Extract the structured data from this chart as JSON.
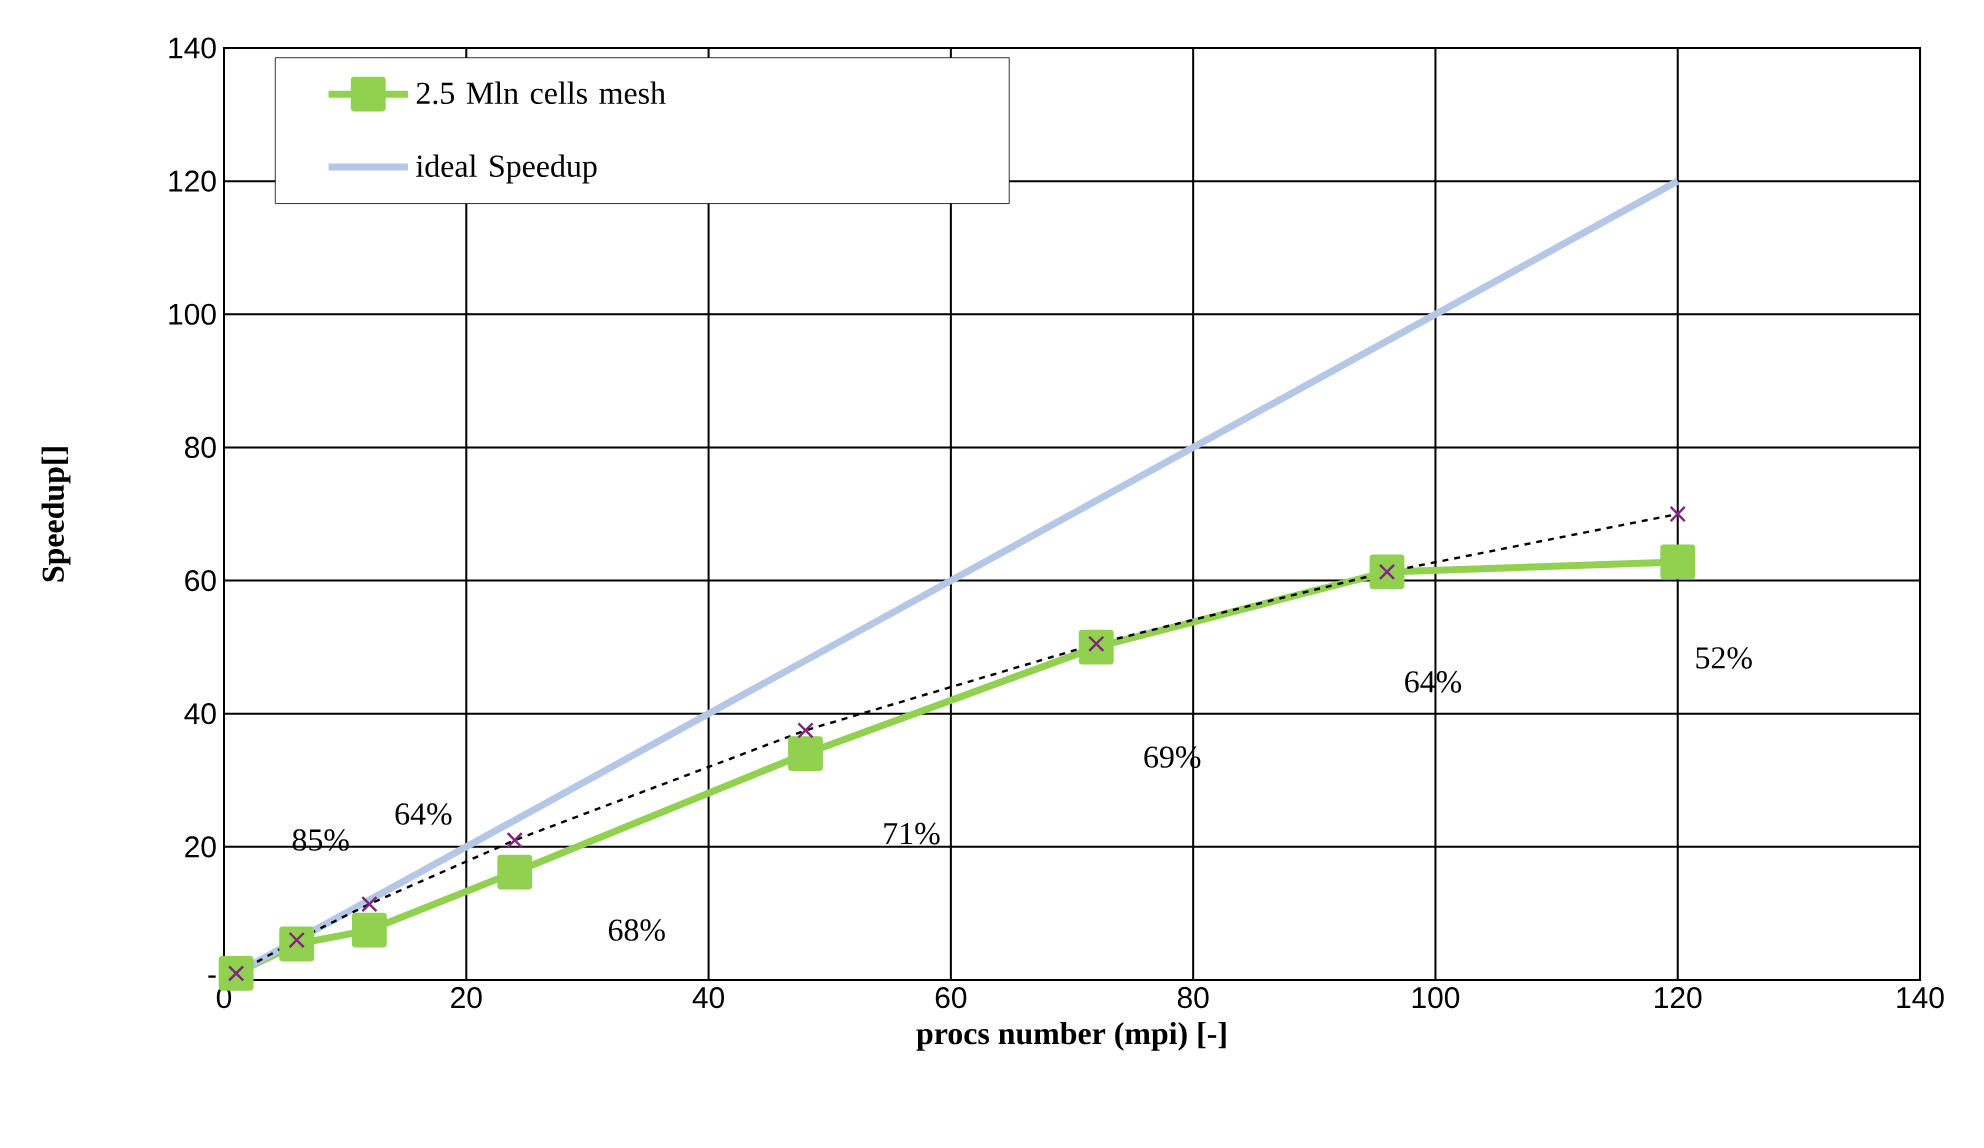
{
  "chart_data": {
    "type": "line",
    "xlabel": "procs number (mpi) [-]",
    "ylabel": "Speedup[]",
    "xlim": [
      0,
      140
    ],
    "xticks": [
      0,
      20,
      40,
      60,
      80,
      100,
      120,
      140
    ],
    "ylim": [
      0,
      140
    ],
    "yticks": [
      {
        "value": 0,
        "label": "-"
      },
      20,
      40,
      60,
      80,
      100,
      120,
      140
    ],
    "grid": true,
    "legend": "top left",
    "series": [
      {
        "name": "2.5 Mln cells mesh",
        "color": "#92d050",
        "marker": "square",
        "line_style": "solid",
        "x": [
          1,
          6,
          12,
          24,
          48,
          72,
          96,
          120
        ],
        "values": [
          1,
          5.4,
          7.5,
          16.2,
          34,
          50,
          61.3,
          62.8
        ]
      },
      {
        "name": "ideal Speedup",
        "color": "#b4c7e7",
        "line_style": "solid",
        "x": [
          1,
          120
        ],
        "values": [
          1,
          120
        ]
      },
      {
        "color": "#000000",
        "marker": "cross",
        "line_style": "dashed",
        "x": [
          1,
          6,
          12,
          24,
          48,
          72,
          96,
          120
        ],
        "values": [
          1,
          6,
          11.4,
          21,
          37.5,
          50.5,
          61.3,
          70
        ]
      }
    ],
    "annotations": [
      "85%",
      "64%",
      "68%",
      "71%",
      "69%",
      "64%",
      "52%"
    ]
  }
}
